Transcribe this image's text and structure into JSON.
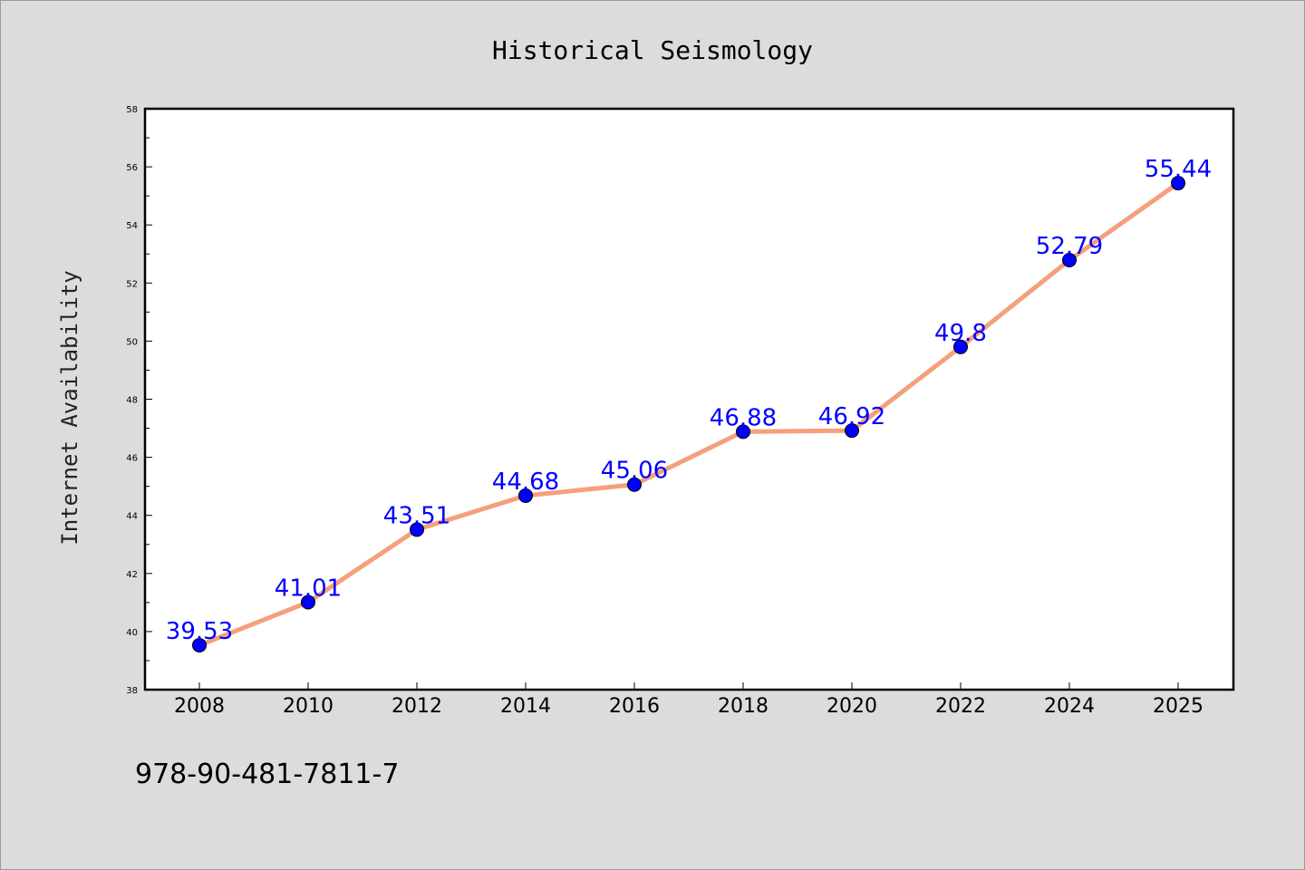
{
  "chart_data": {
    "type": "line",
    "title": "Historical Seismology",
    "xlabel": "",
    "ylabel": "Internet Availability",
    "categories": [
      "2008",
      "2010",
      "2012",
      "2014",
      "2016",
      "2018",
      "2020",
      "2022",
      "2024",
      "2025"
    ],
    "series": [
      {
        "values": [
          39.53,
          41.01,
          43.51,
          44.68,
          45.06,
          46.88,
          46.92,
          49.8,
          52.79,
          55.44
        ],
        "data_labels": [
          "39.53",
          "41.01",
          "43.51",
          "44.68",
          "45.06",
          "46.88",
          "46.92",
          "49.8",
          "52.79",
          "55.44"
        ],
        "line_color": "#f4a07c",
        "marker_color": "#0000ff"
      }
    ],
    "ylim": [
      38,
      58
    ],
    "yticks": [
      "38",
      "40",
      "42",
      "44",
      "46",
      "48",
      "50",
      "52",
      "54",
      "56",
      "58"
    ],
    "grid": false,
    "legend": "none"
  },
  "footer": {
    "isbn": "978-90-481-7811-7"
  },
  "colors": {
    "background": "#dcdcdc",
    "plot_background": "#ffffff"
  }
}
